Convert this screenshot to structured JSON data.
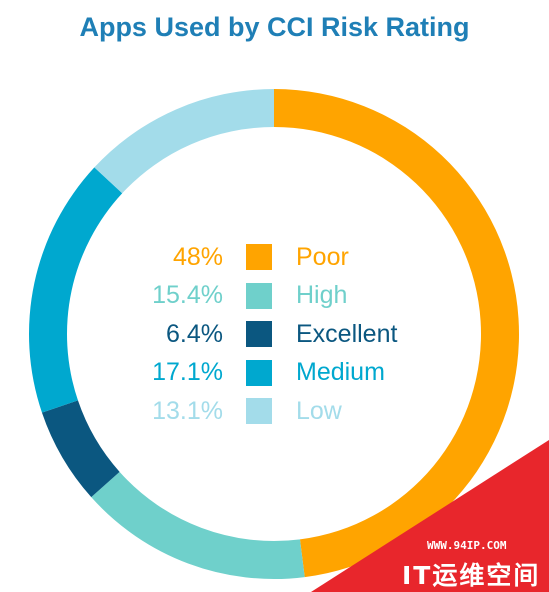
{
  "chart_data": {
    "type": "pie",
    "title": "Apps Used by CCI Risk Rating",
    "subtype": "donut",
    "slices": [
      {
        "label": "Poor",
        "value": 48,
        "display": "48%",
        "color": "#ffa400"
      },
      {
        "label": "High",
        "value": 15.4,
        "display": "15.4%",
        "color": "#6fd0cb"
      },
      {
        "label": "Excellent",
        "value": 6.4,
        "display": "6.4%",
        "color": "#0b5780"
      },
      {
        "label": "Medium",
        "value": 17.1,
        "display": "17.1%",
        "color": "#00a8cf"
      },
      {
        "label": "Low",
        "value": 13.1,
        "display": "13.1%",
        "color": "#a3dcea"
      }
    ],
    "legend_placement": "center"
  },
  "watermark": {
    "url": "WWW.94IP.COM",
    "name": "IT运维空间",
    "color": "#e8262c"
  }
}
